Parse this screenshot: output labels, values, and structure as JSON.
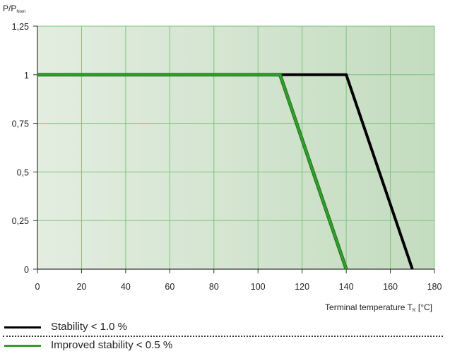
{
  "chart_data": {
    "type": "line",
    "ylabel": {
      "main": "P/P",
      "sub": "Nom"
    },
    "xlabel": {
      "main": "Terminal temperature T",
      "sub": "K",
      "unit": " [°C]"
    },
    "xlim": [
      0,
      180
    ],
    "ylim": [
      0,
      1.25
    ],
    "x_ticks": [
      0,
      20,
      40,
      60,
      80,
      100,
      120,
      140,
      160,
      180
    ],
    "x_tick_labels": [
      "0",
      "20",
      "40",
      "60",
      "80",
      "100",
      "120",
      "140",
      "160",
      "180"
    ],
    "y_ticks": [
      0,
      0.25,
      0.5,
      0.75,
      1,
      1.25
    ],
    "y_tick_labels": [
      "0",
      "0,25",
      "0,5",
      "0,75",
      "1",
      "1,25"
    ],
    "grid": true,
    "series": [
      {
        "name": "Stability < 1.0 %",
        "color": "#000000",
        "x": [
          0,
          140,
          170
        ],
        "y": [
          1,
          1,
          0
        ]
      },
      {
        "name": "Improved stability < 0.5 %",
        "color": "#33a02c",
        "x": [
          0,
          110,
          140
        ],
        "y": [
          1,
          1,
          0
        ]
      }
    ]
  },
  "legend": [
    {
      "label": "Stability < 1.0 %",
      "color": "#000000"
    },
    {
      "label": "Improved stability < 0.5 %",
      "color": "#33a02c"
    }
  ],
  "colors": {
    "plot_bg_left": "#e3ede0",
    "plot_bg_right": "#c4dcc0",
    "grid": "#7cc47a"
  }
}
